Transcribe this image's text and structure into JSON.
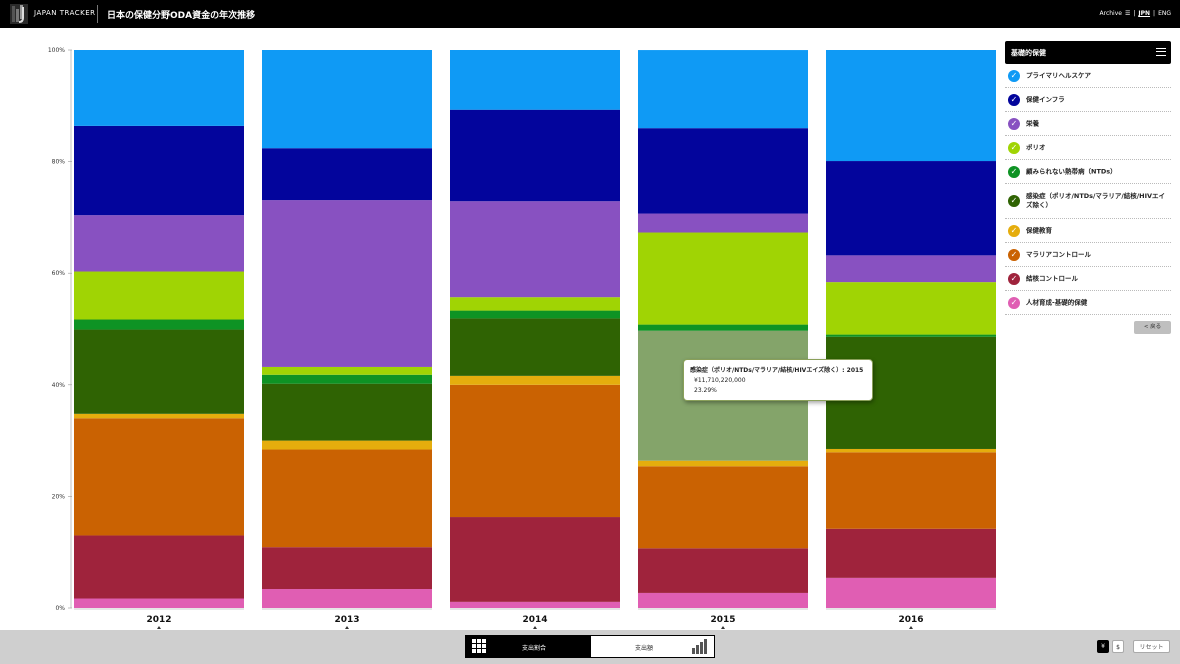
{
  "header": {
    "brand": "JAPAN TRACKER",
    "title": "日本の保健分野ODA資金の年次推移",
    "lang_archive": "Archive",
    "lang_jpn": "JPN",
    "lang_sep": "|",
    "lang_eng": "ENG"
  },
  "legend": {
    "title": "基礎的保健",
    "back_label": "< 戻る",
    "items": [
      {
        "label": "プライマリヘルスケア",
        "color": "#0f9af5"
      },
      {
        "label": "保健インフラ",
        "color": "#03059c"
      },
      {
        "label": "栄養",
        "color": "#8851c1"
      },
      {
        "label": "ポリオ",
        "color": "#a0d404"
      },
      {
        "label": "顧みられない熱帯病（NTDs）",
        "color": "#0e9324"
      },
      {
        "label": "感染症（ポリオ/NTDs/マラリア/結核/HIVエイズ除く）",
        "color": "#2f6303"
      },
      {
        "label": "保健教育",
        "color": "#e5ad0d"
      },
      {
        "label": "マラリアコントロール",
        "color": "#ca6202"
      },
      {
        "label": "結核コントロール",
        "color": "#9f233c"
      },
      {
        "label": "人材育成-基礎的保健",
        "color": "#e05eb3"
      }
    ]
  },
  "tooltip": {
    "title": "感染症（ポリオ/NTDs/マラリア/結核/HIVエイズ除く）: 2015",
    "amount": "¥11,710,220,000",
    "percent": "23.29%"
  },
  "chart_data": {
    "type": "bar",
    "stacked": true,
    "normalized": true,
    "categories": [
      "2012",
      "2013",
      "2014",
      "2015",
      "2016"
    ],
    "y_ticks": [
      "0%",
      "20%",
      "40%",
      "60%",
      "80%",
      "100%"
    ],
    "ylim": [
      0,
      100
    ],
    "series": [
      {
        "name": "人材育成-基礎的保健",
        "color": "#e05eb3",
        "values": [
          1.7,
          3.4,
          1.1,
          2.7,
          5.4
        ]
      },
      {
        "name": "結核コントロール",
        "color": "#9f233c",
        "values": [
          11.3,
          7.5,
          15.2,
          8.0,
          8.8
        ]
      },
      {
        "name": "マラリアコントロール",
        "color": "#ca6202",
        "values": [
          21.0,
          17.5,
          23.7,
          14.7,
          13.7
        ]
      },
      {
        "name": "保健教育",
        "color": "#e5ad0d",
        "values": [
          0.8,
          1.6,
          1.6,
          1.0,
          0.6
        ]
      },
      {
        "name": "感染症（ポリオ/NTDs/マラリア/結核/HIVエイズ除く）",
        "color": "#2f6303",
        "values": [
          15.1,
          10.2,
          10.3,
          23.29,
          20.1
        ]
      },
      {
        "name": "顧みられない熱帯病（NTDs）",
        "color": "#0e9324",
        "values": [
          1.8,
          1.6,
          1.4,
          1.1,
          0.4
        ]
      },
      {
        "name": "ポリオ",
        "color": "#a0d404",
        "values": [
          8.6,
          1.4,
          2.4,
          16.5,
          9.4
        ]
      },
      {
        "name": "栄養",
        "color": "#8851c1",
        "values": [
          10.1,
          29.9,
          17.2,
          3.4,
          4.8
        ]
      },
      {
        "name": "保健インフラ",
        "color": "#03059c",
        "values": [
          16.0,
          9.3,
          16.4,
          15.3,
          16.9
        ]
      },
      {
        "name": "プライマリヘルスケア",
        "color": "#0f9af5",
        "values": [
          13.6,
          17.6,
          10.7,
          14.0,
          19.9
        ]
      }
    ],
    "highlight": {
      "series": "感染症（ポリオ/NTDs/マラリア/結核/HIVエイズ除く）",
      "category": "2015",
      "color": "#84a46a"
    }
  },
  "footer": {
    "toggle_share": "支出割合",
    "toggle_amount": "支出額",
    "currency_yen": "¥",
    "currency_usd": "$",
    "reset": "リセット"
  }
}
